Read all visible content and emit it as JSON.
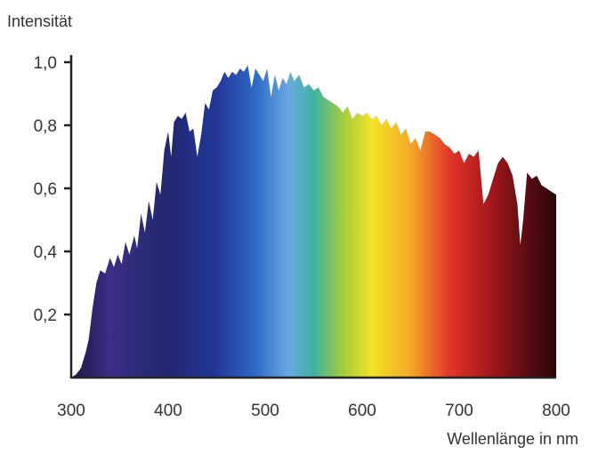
{
  "chart_data": {
    "type": "area",
    "title": "",
    "ylabel": "Intensität",
    "xlabel": "Wellenlänge in nm",
    "xlim": [
      300,
      800
    ],
    "ylim": [
      0,
      1.0
    ],
    "x_ticks": [
      {
        "value": 300,
        "label": "300"
      },
      {
        "value": 400,
        "label": "400"
      },
      {
        "value": 500,
        "label": "500"
      },
      {
        "value": 600,
        "label": "600"
      },
      {
        "value": 700,
        "label": "700"
      },
      {
        "value": 800,
        "label": "800"
      }
    ],
    "y_ticks": [
      {
        "value": 0.2,
        "label": "0,2"
      },
      {
        "value": 0.4,
        "label": "0,4"
      },
      {
        "value": 0.6,
        "label": "0,6"
      },
      {
        "value": 0.8,
        "label": "0,8"
      },
      {
        "value": 1.0,
        "label": "1,0"
      }
    ],
    "grid": false,
    "fill": "visible-spectrum gradient (violet to dark red)",
    "series": [
      {
        "x": [
          300,
          305,
          310,
          315,
          318,
          322,
          326,
          330,
          335,
          340,
          344,
          348,
          352,
          356,
          360,
          365,
          368,
          372,
          376,
          380,
          384,
          388,
          392,
          396,
          400,
          403,
          406,
          410,
          414,
          418,
          422,
          426,
          430,
          434,
          438,
          442,
          446,
          450,
          454,
          458,
          462,
          466,
          470,
          474,
          478,
          482,
          486,
          490,
          494,
          498,
          502,
          506,
          510,
          514,
          518,
          522,
          526,
          530,
          535,
          540,
          545,
          550,
          555,
          560,
          565,
          570,
          575,
          580,
          585,
          590,
          595,
          600,
          605,
          610,
          615,
          620,
          625,
          630,
          635,
          640,
          645,
          650,
          655,
          660,
          665,
          670,
          675,
          680,
          685,
          690,
          695,
          700,
          705,
          710,
          715,
          720,
          725,
          730,
          735,
          740,
          745,
          750,
          755,
          760,
          763,
          766,
          770,
          775,
          780,
          785,
          790,
          795,
          800
        ],
        "y": [
          0.0,
          0.01,
          0.03,
          0.08,
          0.12,
          0.22,
          0.3,
          0.34,
          0.33,
          0.38,
          0.35,
          0.39,
          0.36,
          0.43,
          0.39,
          0.45,
          0.41,
          0.52,
          0.46,
          0.56,
          0.5,
          0.62,
          0.58,
          0.72,
          0.78,
          0.7,
          0.81,
          0.83,
          0.82,
          0.84,
          0.78,
          0.79,
          0.7,
          0.77,
          0.87,
          0.85,
          0.91,
          0.92,
          0.94,
          0.97,
          0.95,
          0.97,
          0.96,
          0.98,
          0.97,
          0.99,
          0.92,
          0.98,
          0.96,
          0.94,
          0.98,
          0.89,
          0.96,
          0.91,
          0.95,
          0.93,
          0.97,
          0.94,
          0.96,
          0.92,
          0.93,
          0.91,
          0.92,
          0.89,
          0.88,
          0.87,
          0.86,
          0.84,
          0.86,
          0.82,
          0.84,
          0.83,
          0.84,
          0.82,
          0.83,
          0.8,
          0.82,
          0.79,
          0.81,
          0.77,
          0.79,
          0.74,
          0.76,
          0.72,
          0.78,
          0.78,
          0.77,
          0.76,
          0.74,
          0.73,
          0.71,
          0.72,
          0.68,
          0.71,
          0.7,
          0.72,
          0.55,
          0.58,
          0.63,
          0.68,
          0.7,
          0.68,
          0.64,
          0.55,
          0.42,
          0.5,
          0.65,
          0.63,
          0.64,
          0.61,
          0.6,
          0.59,
          0.58
        ]
      }
    ]
  }
}
